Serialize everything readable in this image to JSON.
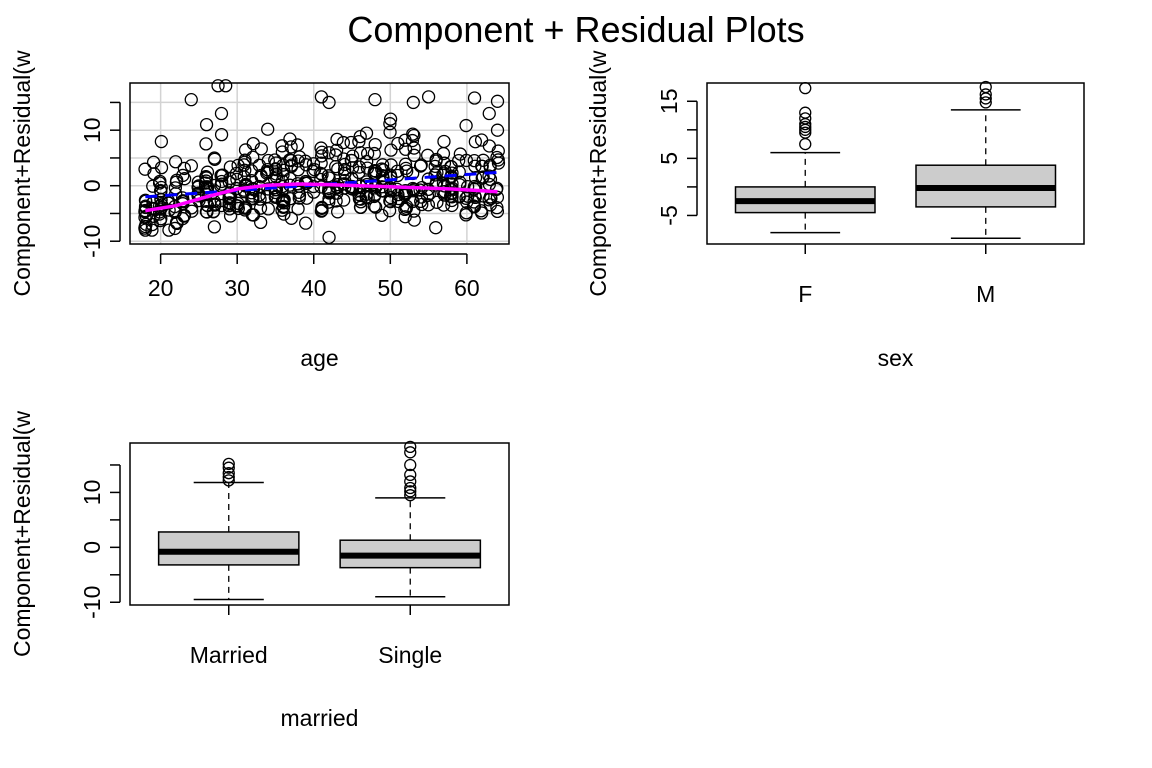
{
  "figure": {
    "title": "Component + Residual Plots"
  },
  "chart_data": [
    {
      "id": "age",
      "type": "scatter",
      "xlabel": "age",
      "ylabel": "Component+Residual(w",
      "xlim": [
        16,
        65.5
      ],
      "ylim": [
        -10.5,
        18.5
      ],
      "xticks": [
        20,
        30,
        40,
        50,
        60
      ],
      "yticks": [
        -10,
        0,
        10
      ],
      "ytick_labels": [
        "-10",
        "0",
        "10"
      ],
      "yminor": [
        -5,
        5,
        15
      ],
      "grid": true,
      "grid_x": [
        20,
        30,
        40,
        50,
        60
      ],
      "grid_y": [
        -10,
        -5,
        0,
        5,
        10,
        15
      ],
      "scatter_seed": 7,
      "scatter_count": 500,
      "highlight_points": [
        [
          24,
          15.5
        ],
        [
          27.5,
          18
        ],
        [
          28.5,
          18
        ],
        [
          41,
          16
        ],
        [
          42,
          15
        ],
        [
          48,
          15.5
        ],
        [
          53,
          15
        ],
        [
          55,
          16
        ],
        [
          61,
          15.8
        ],
        [
          64,
          15.2
        ],
        [
          42,
          -9.3
        ],
        [
          26,
          11
        ],
        [
          64,
          10
        ]
      ],
      "fit_line": {
        "color": "#0000ff",
        "style": "dashed",
        "x": [
          18,
          64
        ],
        "y": [
          -2.0,
          2.4
        ]
      },
      "smooth_line": {
        "color": "#ff00ff",
        "x": [
          18,
          22,
          26,
          30,
          34,
          38,
          42,
          46,
          50,
          54,
          58,
          62,
          64
        ],
        "y": [
          -4.5,
          -3.6,
          -2.0,
          -0.6,
          0.1,
          0.3,
          0.2,
          0.0,
          -0.2,
          -0.4,
          -0.6,
          -0.9,
          -1.1
        ]
      }
    },
    {
      "id": "sex",
      "type": "boxplot",
      "xlabel": "sex",
      "ylabel": "Component+Residual(w",
      "categories": [
        "F",
        "M"
      ],
      "ylim": [
        -10,
        18.2
      ],
      "yticks": [
        -5,
        5,
        15
      ],
      "ytick_labels": [
        "-5",
        "5",
        "15"
      ],
      "yminor": [
        0,
        10
      ],
      "box_fill": "#cccccc",
      "boxes": [
        {
          "whisker_low": -8.0,
          "q1": -4.5,
          "median": -2.5,
          "q3": 0.0,
          "whisker_high": 6.0,
          "outliers": [
            7.5,
            9.5,
            10.0,
            10.5,
            11.0,
            12.0,
            13.0,
            17.3
          ]
        },
        {
          "whisker_low": -9.0,
          "q1": -3.5,
          "median": -0.2,
          "q3": 3.8,
          "whisker_high": 13.5,
          "outliers": [
            14.8,
            15.5,
            16.2,
            17.5
          ]
        }
      ]
    },
    {
      "id": "married",
      "type": "boxplot",
      "xlabel": "married",
      "ylabel": "Component+Residual(w",
      "categories": [
        "Married",
        "Single"
      ],
      "ylim": [
        -10.5,
        19
      ],
      "yticks": [
        -10,
        0,
        10
      ],
      "ytick_labels": [
        "-10",
        "0",
        "10"
      ],
      "yminor": [
        -5,
        5,
        15
      ],
      "box_fill": "#cccccc",
      "boxes": [
        {
          "whisker_low": -9.5,
          "q1": -3.2,
          "median": -0.8,
          "q3": 2.8,
          "whisker_high": 11.8,
          "outliers": [
            12.2,
            12.8,
            13.5,
            14.5,
            15.2
          ]
        },
        {
          "whisker_low": -9.0,
          "q1": -3.7,
          "median": -1.5,
          "q3": 1.3,
          "whisker_high": 9.0,
          "outliers": [
            9.5,
            10.2,
            10.8,
            12.0,
            13.2,
            15.0,
            17.3,
            18.3
          ]
        }
      ]
    }
  ]
}
